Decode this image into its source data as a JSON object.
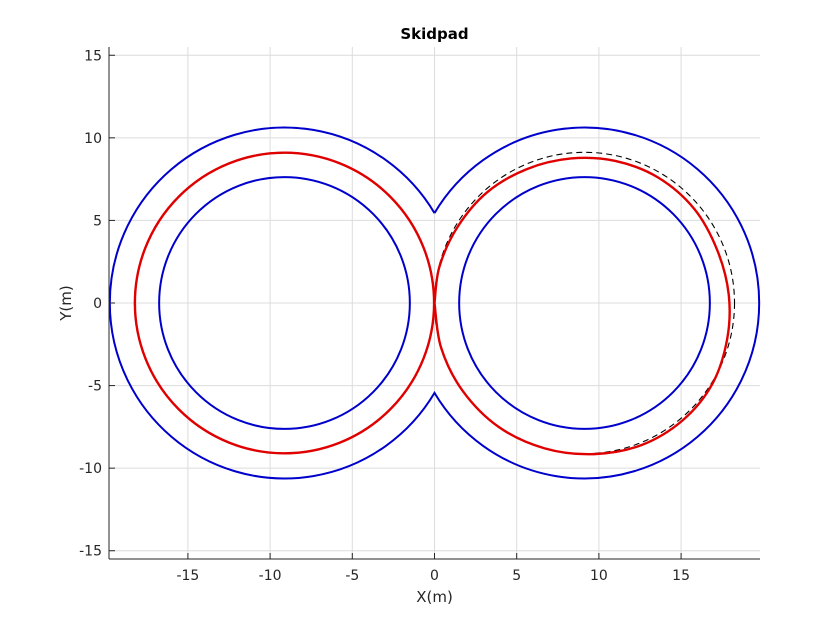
{
  "chart_data": {
    "type": "line",
    "title": "Skidpad",
    "xlabel": "X(m)",
    "ylabel": "Y(m)",
    "xlim": [
      -19.8,
      19.8
    ],
    "ylim": [
      -15.5,
      15.5
    ],
    "xticks": [
      -15,
      -10,
      -5,
      0,
      5,
      10,
      15
    ],
    "xtick_labels": [
      "-15",
      "-10",
      "-5",
      "0",
      "5",
      "10",
      "15"
    ],
    "yticks": [
      -15,
      -10,
      -5,
      0,
      5,
      10,
      15
    ],
    "ytick_labels": [
      "-15",
      "-10",
      "-5",
      "0",
      "5",
      "10",
      "15"
    ],
    "grid": true,
    "legend": null,
    "colors": {
      "boundary": "#0000cc",
      "actual_path": "#e00000",
      "reference_path": "#000000",
      "grid": "#dcdcdc",
      "axis": "#262626"
    },
    "series": [
      {
        "role": "outer-boundary",
        "style": "solid",
        "color": "#0000cc",
        "description": "figure-eight outer edge (two arcs of radius 10.6 centred at x=-9.125 and x=9.125, joined near y=±5.4)",
        "centers_x": [
          -9.125,
          9.125
        ],
        "radius": 10.625
      },
      {
        "role": "inner-circle-left",
        "style": "solid",
        "color": "#0000cc",
        "center": [
          -9.125,
          0
        ],
        "radius": 7.625
      },
      {
        "role": "inner-circle-right",
        "style": "solid",
        "color": "#0000cc",
        "center": [
          9.125,
          0
        ],
        "radius": 7.625
      },
      {
        "role": "reference-left",
        "style": "dashed",
        "color": "#000000",
        "center": [
          -9.125,
          0
        ],
        "radius": 9.125
      },
      {
        "role": "reference-right",
        "style": "dashed",
        "color": "#000000",
        "center": [
          9.125,
          0
        ],
        "radius": 9.125
      },
      {
        "role": "driven-left",
        "style": "solid",
        "color": "#e00000",
        "center": [
          -9.125,
          0
        ],
        "radius": 9.1
      },
      {
        "role": "driven-right",
        "style": "solid",
        "color": "#e00000",
        "points": [
          [
            0,
            0
          ],
          [
            0.3,
            2.2
          ],
          [
            1.4,
            4.6
          ],
          [
            3.2,
            6.7
          ],
          [
            5.6,
            8.1
          ],
          [
            8.3,
            8.75
          ],
          [
            11.0,
            8.6
          ],
          [
            13.6,
            7.6
          ],
          [
            15.8,
            5.7
          ],
          [
            17.2,
            3.2
          ],
          [
            17.9,
            0.5
          ],
          [
            17.8,
            -2.2
          ],
          [
            16.9,
            -4.9
          ],
          [
            15.1,
            -7.1
          ],
          [
            12.6,
            -8.6
          ],
          [
            9.7,
            -9.15
          ],
          [
            6.7,
            -8.8
          ],
          [
            3.9,
            -7.5
          ],
          [
            1.7,
            -5.3
          ],
          [
            0.4,
            -2.7
          ],
          [
            0,
            0
          ]
        ]
      }
    ]
  }
}
